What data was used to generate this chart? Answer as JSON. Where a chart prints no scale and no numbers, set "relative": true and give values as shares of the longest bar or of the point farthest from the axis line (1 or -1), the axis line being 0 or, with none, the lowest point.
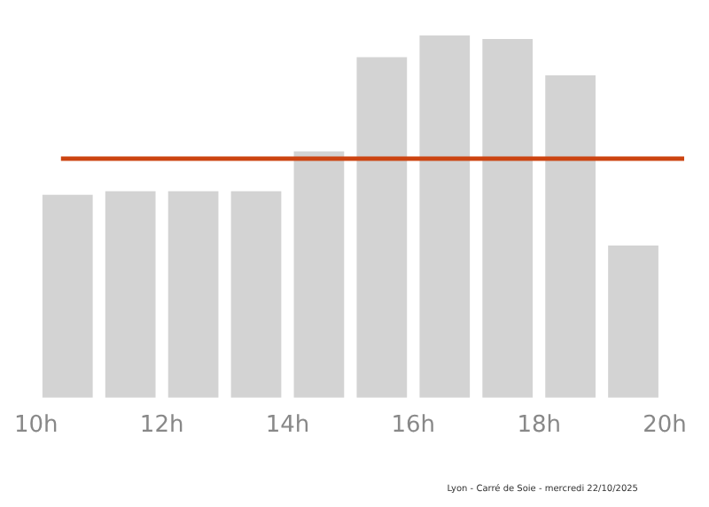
{
  "chart_data": {
    "type": "bar",
    "relative": true,
    "x": [
      10.5,
      11.5,
      12.5,
      13.5,
      14.5,
      15.5,
      16.5,
      17.5,
      18.5,
      19.5
    ],
    "values": [
      0.56,
      0.57,
      0.57,
      0.57,
      0.68,
      0.94,
      1,
      0.99,
      0.89,
      0.42
    ],
    "color": "#d3d3d3",
    "xlim": [
      10,
      20
    ],
    "xticks": [
      {
        "value": 10,
        "label": "10h"
      },
      {
        "value": 12,
        "label": "12h"
      },
      {
        "value": 14,
        "label": "14h"
      },
      {
        "value": 16,
        "label": "16h"
      },
      {
        "value": 18,
        "label": "18h"
      },
      {
        "value": 20,
        "label": "20h"
      }
    ],
    "ref_lines": [
      {
        "axis": "y",
        "value": 0.66,
        "color": "#cc4411"
      }
    ],
    "grid": false,
    "legend": false,
    "annotations": [
      "Lyon - Carré de Soie - mercredi 22/10/2025"
    ]
  }
}
